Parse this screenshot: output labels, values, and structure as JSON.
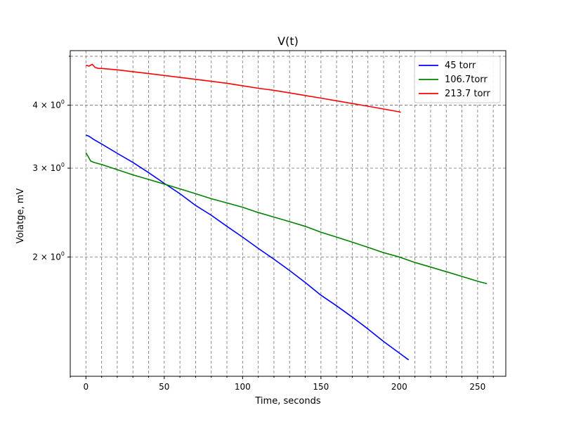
{
  "chart_data": {
    "type": "line",
    "title": "V(t)",
    "xlabel": "Time, seconds",
    "ylabel": "Volatge, mV",
    "xlim": [
      -10,
      268
    ],
    "ylim": [
      1.16,
      5.13
    ],
    "yscale": "log",
    "grid": true,
    "grid_style": "dashed",
    "legend_position": "top-right",
    "x_ticks": [
      {
        "value": 0,
        "label": "0"
      },
      {
        "value": 50,
        "label": "50"
      },
      {
        "value": 100,
        "label": "100"
      },
      {
        "value": 150,
        "label": "150"
      },
      {
        "value": 200,
        "label": "200"
      },
      {
        "value": 250,
        "label": "250"
      }
    ],
    "x_minor_step": 10,
    "y_ticks": [
      {
        "value": 2,
        "mantissa": "2",
        "base": "10",
        "exponent": "0"
      },
      {
        "value": 3,
        "mantissa": "3",
        "base": "10",
        "exponent": "0"
      },
      {
        "value": 4,
        "mantissa": "4",
        "base": "10",
        "exponent": "0"
      }
    ],
    "y_minor_ticks": [
      5
    ],
    "series": [
      {
        "name": "45 torr",
        "color": "#0000ff",
        "x": [
          0,
          2,
          5,
          10,
          20,
          30,
          40,
          50,
          60,
          70,
          80,
          90,
          100,
          110,
          120,
          130,
          140,
          150,
          160,
          170,
          180,
          190,
          200,
          206
        ],
        "y": [
          3.49,
          3.47,
          3.42,
          3.35,
          3.21,
          3.08,
          2.94,
          2.8,
          2.67,
          2.53,
          2.42,
          2.3,
          2.19,
          2.08,
          1.98,
          1.88,
          1.78,
          1.68,
          1.6,
          1.52,
          1.44,
          1.36,
          1.29,
          1.25
        ]
      },
      {
        "name": "106.7torr",
        "color": "#008000",
        "x": [
          0,
          1,
          2,
          3,
          5,
          10,
          20,
          30,
          40,
          50,
          60,
          70,
          80,
          90,
          100,
          110,
          120,
          130,
          140,
          150,
          160,
          170,
          180,
          190,
          200,
          210,
          220,
          230,
          240,
          250,
          256
        ],
        "y": [
          3.22,
          3.18,
          3.14,
          3.1,
          3.08,
          3.05,
          2.98,
          2.91,
          2.85,
          2.79,
          2.73,
          2.67,
          2.61,
          2.56,
          2.51,
          2.45,
          2.4,
          2.35,
          2.3,
          2.24,
          2.19,
          2.14,
          2.09,
          2.04,
          2.0,
          1.95,
          1.91,
          1.87,
          1.83,
          1.79,
          1.77
        ]
      },
      {
        "name": "213.7 torr",
        "color": "#ff0000",
        "x": [
          0,
          2,
          4,
          6,
          8,
          10,
          20,
          30,
          40,
          50,
          60,
          70,
          80,
          90,
          100,
          110,
          120,
          130,
          140,
          150,
          160,
          170,
          180,
          190,
          200,
          201
        ],
        "y": [
          4.8,
          4.78,
          4.82,
          4.75,
          4.73,
          4.73,
          4.7,
          4.66,
          4.62,
          4.58,
          4.54,
          4.5,
          4.46,
          4.42,
          4.37,
          4.32,
          4.28,
          4.23,
          4.18,
          4.13,
          4.08,
          4.03,
          3.98,
          3.93,
          3.88,
          3.87
        ]
      }
    ]
  }
}
